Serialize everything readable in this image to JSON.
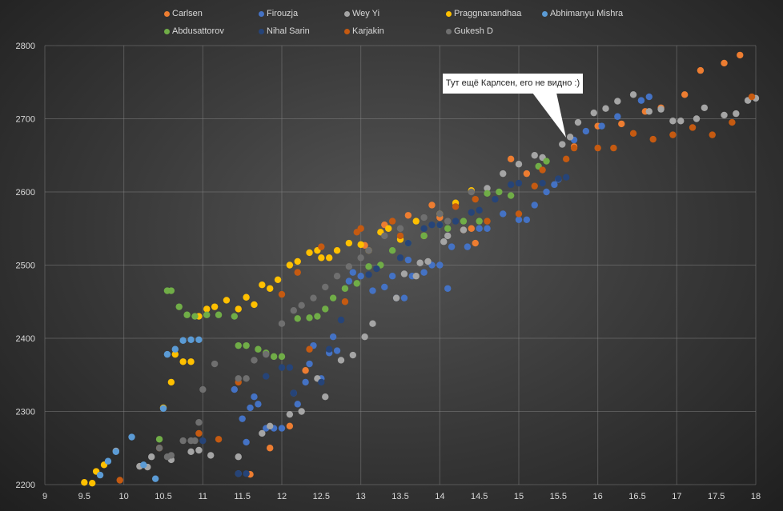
{
  "chart_data": {
    "type": "scatter",
    "title": "",
    "xlabel": "",
    "ylabel": "",
    "xlim": [
      9,
      18
    ],
    "ylim": [
      2200,
      2800
    ],
    "xticks": [
      "9",
      "9.5",
      "10",
      "10.5",
      "11",
      "11.5",
      "12",
      "12.5",
      "13",
      "13.5",
      "14",
      "14.5",
      "15",
      "15.5",
      "16",
      "16.5",
      "17",
      "17.5",
      "18"
    ],
    "yticks": [
      "2200",
      "2300",
      "2400",
      "2500",
      "2600",
      "2700",
      "2800"
    ],
    "grid": true,
    "legend_position": "top",
    "annotation": {
      "text": "Тут ещё Карлсен, его не видно :)",
      "x": 15.65,
      "y": 2675
    },
    "series": [
      {
        "name": "Carlsen",
        "color": "#ed7d31",
        "points": [
          [
            11.6,
            2214
          ],
          [
            11.85,
            2250
          ],
          [
            12.1,
            2280
          ],
          [
            12.3,
            2356
          ],
          [
            13.05,
            2527
          ],
          [
            13.3,
            2555
          ],
          [
            13.6,
            2568
          ],
          [
            13.9,
            2582
          ],
          [
            14.0,
            2565
          ],
          [
            14.3,
            2548
          ],
          [
            14.4,
            2550
          ],
          [
            14.45,
            2530
          ],
          [
            14.9,
            2645
          ],
          [
            15.1,
            2625
          ],
          [
            15.7,
            2662
          ],
          [
            16.0,
            2690
          ],
          [
            16.3,
            2693
          ],
          [
            16.6,
            2710
          ],
          [
            16.8,
            2715
          ],
          [
            17.1,
            2733
          ],
          [
            17.3,
            2766
          ],
          [
            17.6,
            2776
          ],
          [
            17.8,
            2787
          ]
        ]
      },
      {
        "name": "Firouzja",
        "color": "#4472c4",
        "points": [
          [
            11.4,
            2330
          ],
          [
            11.45,
            2215
          ],
          [
            11.5,
            2290
          ],
          [
            11.55,
            2258
          ],
          [
            11.6,
            2305
          ],
          [
            11.65,
            2320
          ],
          [
            11.7,
            2310
          ],
          [
            11.8,
            2277
          ],
          [
            11.9,
            2277
          ],
          [
            12.0,
            2277
          ],
          [
            12.15,
            2325
          ],
          [
            12.2,
            2310
          ],
          [
            12.3,
            2340
          ],
          [
            12.35,
            2365
          ],
          [
            12.4,
            2390
          ],
          [
            12.5,
            2345
          ],
          [
            12.6,
            2380
          ],
          [
            12.65,
            2402
          ],
          [
            12.7,
            2383
          ],
          [
            12.85,
            2478
          ],
          [
            12.9,
            2490
          ],
          [
            13.0,
            2485
          ],
          [
            13.15,
            2465
          ],
          [
            13.3,
            2470
          ],
          [
            13.4,
            2485
          ],
          [
            13.45,
            2455
          ],
          [
            13.55,
            2455
          ],
          [
            13.6,
            2507
          ],
          [
            13.65,
            2485
          ],
          [
            13.8,
            2490
          ],
          [
            13.9,
            2500
          ],
          [
            14.0,
            2500
          ],
          [
            14.1,
            2468
          ],
          [
            14.15,
            2525
          ],
          [
            14.35,
            2525
          ],
          [
            14.5,
            2550
          ],
          [
            14.6,
            2550
          ],
          [
            14.8,
            2570
          ],
          [
            15.0,
            2562
          ],
          [
            15.1,
            2562
          ],
          [
            15.2,
            2582
          ],
          [
            15.35,
            2600
          ],
          [
            15.45,
            2610
          ],
          [
            15.5,
            2617
          ],
          [
            15.7,
            2671
          ],
          [
            15.85,
            2683
          ],
          [
            16.05,
            2690
          ],
          [
            16.25,
            2703
          ],
          [
            16.55,
            2725
          ],
          [
            16.65,
            2730
          ]
        ]
      },
      {
        "name": "Wey Yi",
        "color": "#a5a5a5",
        "points": [
          [
            9.9,
            2246
          ],
          [
            10.2,
            2225
          ],
          [
            10.3,
            2224
          ],
          [
            10.35,
            2238
          ],
          [
            10.6,
            2234
          ],
          [
            10.85,
            2245
          ],
          [
            10.95,
            2247
          ],
          [
            11.1,
            2240
          ],
          [
            11.45,
            2238
          ],
          [
            11.75,
            2270
          ],
          [
            11.85,
            2280
          ],
          [
            12.1,
            2296
          ],
          [
            12.25,
            2300
          ],
          [
            12.45,
            2345
          ],
          [
            12.55,
            2320
          ],
          [
            12.75,
            2370
          ],
          [
            12.9,
            2377
          ],
          [
            13.05,
            2402
          ],
          [
            13.15,
            2420
          ],
          [
            13.45,
            2455
          ],
          [
            13.55,
            2488
          ],
          [
            13.7,
            2485
          ],
          [
            13.75,
            2503
          ],
          [
            13.85,
            2505
          ],
          [
            14.05,
            2532
          ],
          [
            14.1,
            2540
          ],
          [
            14.3,
            2548
          ],
          [
            14.6,
            2605
          ],
          [
            14.8,
            2625
          ],
          [
            15.0,
            2638
          ],
          [
            15.2,
            2650
          ],
          [
            15.3,
            2647
          ],
          [
            15.55,
            2665
          ],
          [
            15.65,
            2675
          ],
          [
            15.75,
            2695
          ],
          [
            15.95,
            2708
          ],
          [
            16.1,
            2714
          ],
          [
            16.25,
            2724
          ],
          [
            16.45,
            2733
          ],
          [
            16.65,
            2710
          ],
          [
            16.8,
            2713
          ],
          [
            16.95,
            2697
          ],
          [
            17.05,
            2697
          ],
          [
            17.25,
            2700
          ],
          [
            17.35,
            2715
          ],
          [
            17.6,
            2705
          ],
          [
            17.75,
            2707
          ],
          [
            17.9,
            2725
          ],
          [
            18.0,
            2728
          ]
        ]
      },
      {
        "name": "Praggnanandhaa",
        "color": "#ffc000",
        "points": [
          [
            9.5,
            2203
          ],
          [
            9.6,
            2202
          ],
          [
            9.65,
            2218
          ],
          [
            9.75,
            2227
          ],
          [
            10.5,
            2305
          ],
          [
            10.6,
            2340
          ],
          [
            10.65,
            2378
          ],
          [
            10.75,
            2368
          ],
          [
            10.85,
            2368
          ],
          [
            10.95,
            2430
          ],
          [
            11.05,
            2440
          ],
          [
            11.15,
            2443
          ],
          [
            11.3,
            2452
          ],
          [
            11.45,
            2440
          ],
          [
            11.55,
            2456
          ],
          [
            11.65,
            2446
          ],
          [
            11.75,
            2473
          ],
          [
            11.85,
            2468
          ],
          [
            11.95,
            2480
          ],
          [
            12.1,
            2500
          ],
          [
            12.2,
            2505
          ],
          [
            12.35,
            2517
          ],
          [
            12.45,
            2520
          ],
          [
            12.5,
            2510
          ],
          [
            12.6,
            2510
          ],
          [
            12.7,
            2520
          ],
          [
            12.85,
            2530
          ],
          [
            13.0,
            2528
          ],
          [
            13.1,
            2520
          ],
          [
            13.25,
            2545
          ],
          [
            13.35,
            2550
          ],
          [
            13.5,
            2535
          ],
          [
            13.7,
            2560
          ],
          [
            13.8,
            2540
          ],
          [
            14.0,
            2570
          ],
          [
            14.2,
            2585
          ],
          [
            14.4,
            2602
          ]
        ]
      },
      {
        "name": "Abhimanyu Mishra",
        "color": "#5b9bd5",
        "points": [
          [
            9.7,
            2213
          ],
          [
            9.8,
            2232
          ],
          [
            9.9,
            2245
          ],
          [
            10.1,
            2265
          ],
          [
            10.25,
            2227
          ],
          [
            10.4,
            2208
          ],
          [
            10.5,
            2304
          ],
          [
            10.55,
            2378
          ],
          [
            10.65,
            2385
          ],
          [
            10.75,
            2397
          ],
          [
            10.85,
            2398
          ],
          [
            10.95,
            2398
          ]
        ]
      },
      {
        "name": "Abdusattorov",
        "color": "#70ad47",
        "points": [
          [
            10.45,
            2262
          ],
          [
            10.55,
            2465
          ],
          [
            10.6,
            2465
          ],
          [
            10.7,
            2443
          ],
          [
            10.8,
            2432
          ],
          [
            10.9,
            2430
          ],
          [
            11.05,
            2432
          ],
          [
            11.2,
            2432
          ],
          [
            11.4,
            2430
          ],
          [
            11.45,
            2390
          ],
          [
            11.55,
            2390
          ],
          [
            11.7,
            2385
          ],
          [
            11.8,
            2380
          ],
          [
            11.9,
            2375
          ],
          [
            12.0,
            2375
          ],
          [
            12.2,
            2427
          ],
          [
            12.35,
            2428
          ],
          [
            12.45,
            2430
          ],
          [
            12.55,
            2440
          ],
          [
            12.65,
            2455
          ],
          [
            12.8,
            2468
          ],
          [
            12.95,
            2475
          ],
          [
            13.1,
            2498
          ],
          [
            13.25,
            2500
          ],
          [
            13.4,
            2520
          ],
          [
            13.6,
            2530
          ],
          [
            13.8,
            2540
          ],
          [
            14.0,
            2555
          ],
          [
            14.1,
            2550
          ],
          [
            14.3,
            2560
          ],
          [
            14.5,
            2560
          ],
          [
            14.6,
            2598
          ],
          [
            14.75,
            2600
          ],
          [
            14.9,
            2595
          ],
          [
            15.25,
            2635
          ],
          [
            15.35,
            2642
          ]
        ]
      },
      {
        "name": "Nihal Sarin",
        "color": "#264478",
        "points": [
          [
            11.0,
            2260
          ],
          [
            11.45,
            2215
          ],
          [
            11.55,
            2215
          ],
          [
            11.8,
            2348
          ],
          [
            12.0,
            2360
          ],
          [
            12.1,
            2360
          ],
          [
            12.15,
            2325
          ],
          [
            12.5,
            2340
          ],
          [
            12.6,
            2385
          ],
          [
            12.75,
            2425
          ],
          [
            13.1,
            2487
          ],
          [
            13.2,
            2495
          ],
          [
            13.5,
            2510
          ],
          [
            13.6,
            2530
          ],
          [
            13.8,
            2550
          ],
          [
            13.9,
            2555
          ],
          [
            14.0,
            2555
          ],
          [
            14.2,
            2560
          ],
          [
            14.4,
            2572
          ],
          [
            14.5,
            2575
          ],
          [
            14.7,
            2590
          ],
          [
            14.9,
            2610
          ],
          [
            15.0,
            2612
          ],
          [
            15.3,
            2612
          ],
          [
            15.5,
            2618
          ],
          [
            15.6,
            2620
          ]
        ]
      },
      {
        "name": "Karjakin",
        "color": "#c55a11",
        "points": [
          [
            9.95,
            2206
          ],
          [
            10.45,
            2250
          ],
          [
            10.95,
            2270
          ],
          [
            11.2,
            2262
          ],
          [
            11.45,
            2340
          ],
          [
            12.0,
            2460
          ],
          [
            12.2,
            2490
          ],
          [
            12.35,
            2385
          ],
          [
            12.5,
            2525
          ],
          [
            12.8,
            2450
          ],
          [
            12.95,
            2545
          ],
          [
            13.0,
            2550
          ],
          [
            13.4,
            2560
          ],
          [
            13.5,
            2540
          ],
          [
            14.2,
            2580
          ],
          [
            14.45,
            2590
          ],
          [
            14.6,
            2560
          ],
          [
            15.0,
            2570
          ],
          [
            15.2,
            2608
          ],
          [
            15.3,
            2630
          ],
          [
            15.6,
            2645
          ],
          [
            15.7,
            2660
          ],
          [
            16.0,
            2660
          ],
          [
            16.2,
            2660
          ],
          [
            16.45,
            2680
          ],
          [
            16.7,
            2672
          ],
          [
            16.95,
            2678
          ],
          [
            17.2,
            2688
          ],
          [
            17.45,
            2678
          ],
          [
            17.7,
            2695
          ],
          [
            17.95,
            2730
          ]
        ]
      },
      {
        "name": "Gukesh D",
        "color": "#6f6f6f",
        "points": [
          [
            10.45,
            2250
          ],
          [
            10.55,
            2238
          ],
          [
            10.6,
            2240
          ],
          [
            10.75,
            2260
          ],
          [
            10.85,
            2260
          ],
          [
            10.9,
            2260
          ],
          [
            10.95,
            2285
          ],
          [
            11.0,
            2330
          ],
          [
            11.15,
            2365
          ],
          [
            11.45,
            2345
          ],
          [
            11.55,
            2345
          ],
          [
            11.65,
            2370
          ],
          [
            11.8,
            2378
          ],
          [
            12.0,
            2420
          ],
          [
            12.15,
            2438
          ],
          [
            12.25,
            2445
          ],
          [
            12.4,
            2455
          ],
          [
            12.55,
            2470
          ],
          [
            12.7,
            2485
          ],
          [
            12.85,
            2498
          ],
          [
            13.0,
            2510
          ],
          [
            13.1,
            2520
          ],
          [
            13.3,
            2540
          ],
          [
            13.5,
            2550
          ],
          [
            13.8,
            2565
          ],
          [
            14.0,
            2570
          ],
          [
            14.1,
            2560
          ],
          [
            14.4,
            2600
          ]
        ]
      }
    ]
  }
}
